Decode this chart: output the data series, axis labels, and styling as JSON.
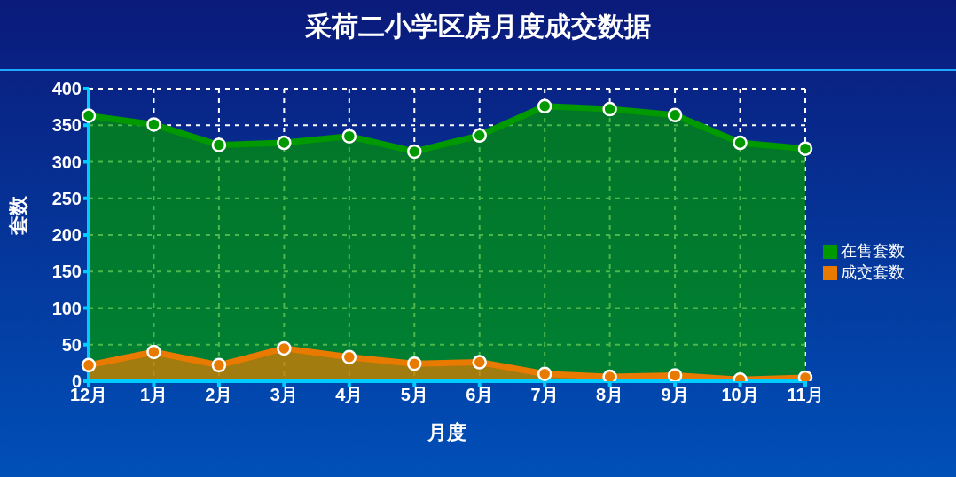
{
  "chart_data": {
    "type": "area",
    "title": "采荷二小学区房月度成交数据",
    "xlabel": "月度",
    "ylabel": "套数",
    "categories": [
      "12月",
      "1月",
      "2月",
      "3月",
      "4月",
      "5月",
      "6月",
      "7月",
      "8月",
      "9月",
      "10月",
      "11月"
    ],
    "series": [
      {
        "name": "在售套数",
        "color": "#009900",
        "values": [
          363,
          351,
          323,
          326,
          335,
          314,
          336,
          376,
          372,
          364,
          326,
          318
        ]
      },
      {
        "name": "成交套数",
        "color": "#e87a00",
        "values": [
          22,
          40,
          22,
          45,
          33,
          24,
          26,
          10,
          6,
          8,
          2,
          5
        ]
      }
    ],
    "ylim": [
      0,
      400
    ],
    "yticks": [
      0,
      50,
      100,
      150,
      200,
      250,
      300,
      350,
      400
    ],
    "grid": true,
    "legend": "right",
    "marker": "circle"
  }
}
